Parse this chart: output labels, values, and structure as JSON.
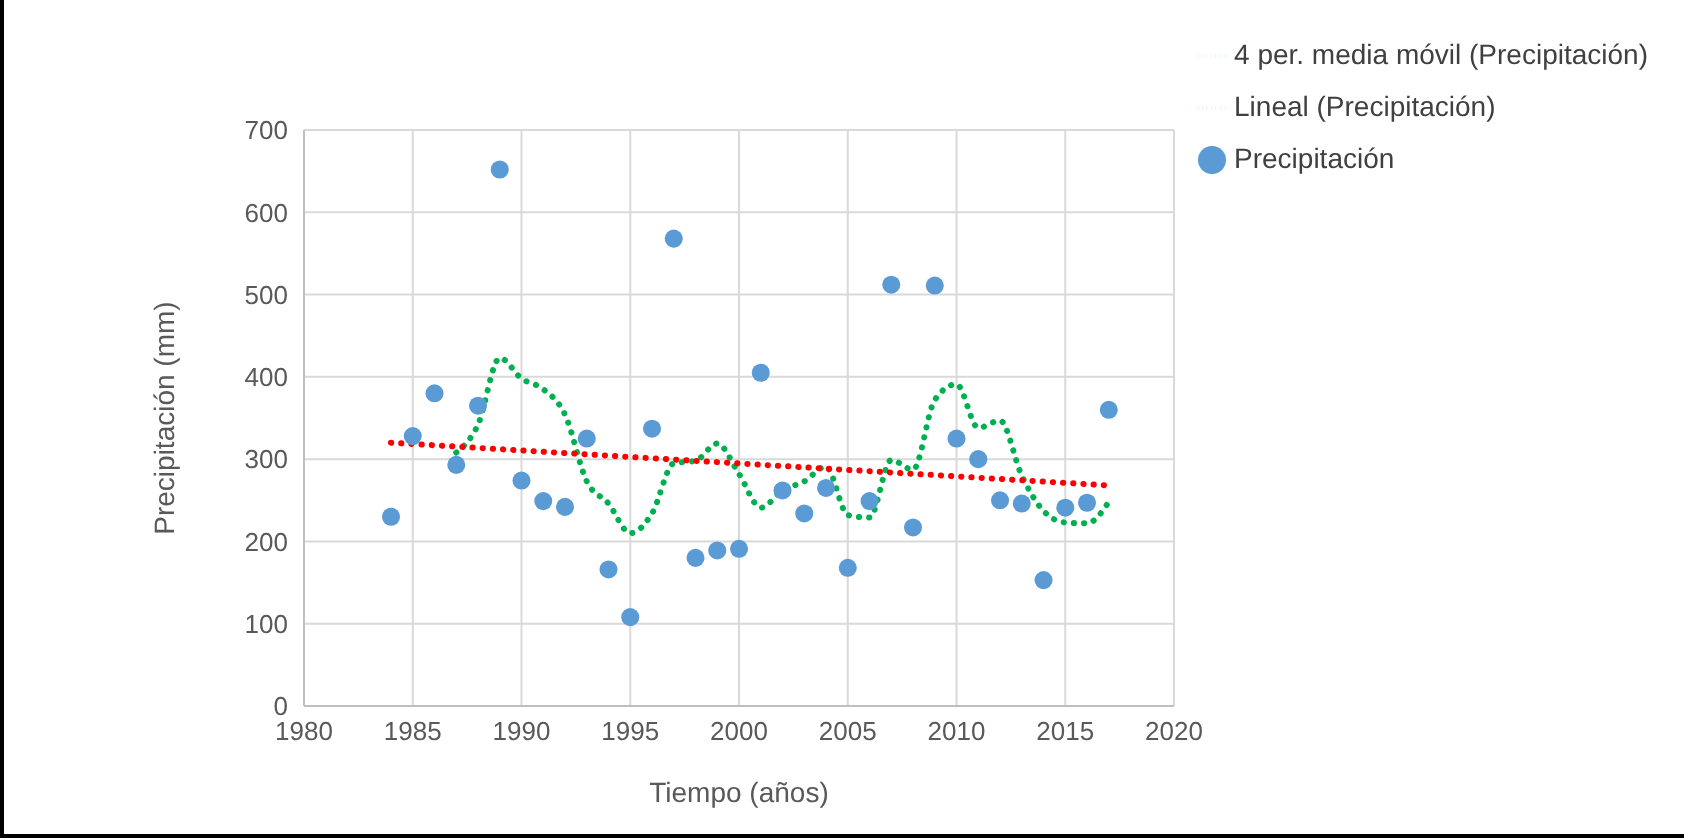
{
  "chart_data": {
    "type": "scatter",
    "xlabel": "Tiempo (años)",
    "ylabel": "Precipitación (mm)",
    "xlim": [
      1980,
      2020
    ],
    "xticks": [
      1980,
      1985,
      1990,
      1995,
      2000,
      2005,
      2010,
      2015,
      2020
    ],
    "ylim": [
      0,
      700
    ],
    "yticks": [
      0,
      100,
      200,
      300,
      400,
      500,
      600,
      700
    ],
    "grid": true,
    "legend": "top right",
    "x": [
      1984,
      1985,
      1986,
      1987,
      1988,
      1989,
      1990,
      1991,
      1992,
      1993,
      1994,
      1995,
      1996,
      1997,
      1998,
      1999,
      2000,
      2001,
      2002,
      2003,
      2004,
      2005,
      2006,
      2007,
      2008,
      2009,
      2010,
      2011,
      2012,
      2013,
      2014,
      2015,
      2016,
      2017
    ],
    "series": [
      {
        "name": "Precipitación",
        "color": "#5b9bd5",
        "marker": "circle",
        "values": [
          230,
          328,
          380,
          293,
          365,
          652,
          274,
          249,
          242,
          325,
          166,
          108,
          337,
          568,
          180,
          189,
          191,
          405,
          262,
          234,
          265,
          168,
          249,
          512,
          217,
          511,
          325,
          300,
          250,
          246,
          153,
          241,
          247,
          360
        ]
      },
      {
        "name": "4 per. media móvil (Precipitación)",
        "type": "line",
        "color": "#00b050",
        "marker": "none",
        "line_style": "dotted",
        "x": [
          1987,
          1988,
          1989,
          1990,
          1991,
          1992,
          1993,
          1994,
          1995,
          1996,
          1997,
          1998,
          1999,
          2000,
          2001,
          2002,
          2003,
          2004,
          2005,
          2006,
          2007,
          2008,
          2009,
          2010,
          2011,
          2012,
          2013,
          2014,
          2015,
          2016,
          2017
        ],
        "values": [
          308,
          342,
          423,
          398,
          385,
          354,
          273,
          246,
          210,
          234,
          295,
          298,
          319,
          282,
          241,
          262,
          273,
          291,
          232,
          229,
          299,
          287,
          372,
          391,
          338,
          347,
          280,
          237,
          223,
          222,
          248
        ]
      },
      {
        "name": "Lineal (Precipitación)",
        "type": "line",
        "color": "#ff0000",
        "marker": "none",
        "line_style": "dotted",
        "x": [
          1984,
          2017
        ],
        "values": [
          320,
          268
        ]
      }
    ]
  }
}
